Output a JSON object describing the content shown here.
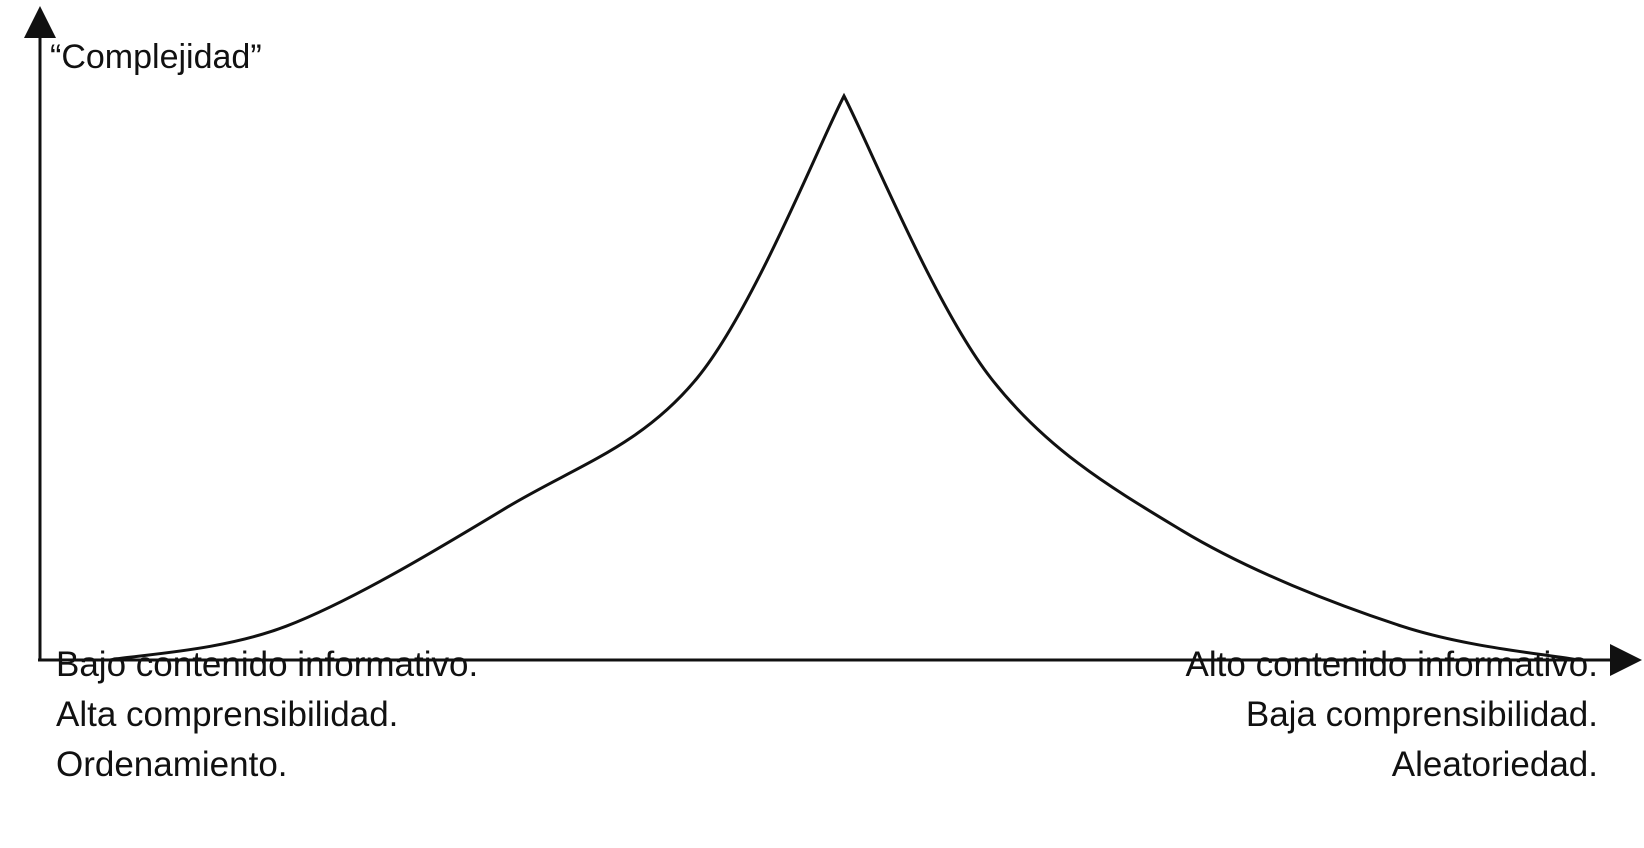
{
  "chart_data": {
    "type": "line",
    "title": "",
    "ylabel": "“Complejidad”",
    "xlabel": "",
    "x_ticks": false,
    "y_ticks": false,
    "grid": false,
    "legend": "none",
    "line_color": "#111111",
    "axis_color": "#111111",
    "series": [
      {
        "x": [
          0.0,
          0.12,
          0.27,
          0.4,
          0.5,
          0.6,
          0.73,
          0.88,
          1.0
        ],
        "y": [
          0.0,
          0.06,
          0.27,
          0.5,
          1.0,
          0.5,
          0.23,
          0.06,
          0.0
        ]
      }
    ],
    "xlim": [
      0,
      1
    ],
    "ylim": [
      0,
      1
    ],
    "annotations": {
      "left": [
        "Bajo contenido informativo.",
        "Alta comprensibilidad.",
        "Ordenamiento."
      ],
      "right": [
        "Alto contenido informativo.",
        "Baja comprensibilidad.",
        "Aleatoriedad."
      ]
    }
  }
}
